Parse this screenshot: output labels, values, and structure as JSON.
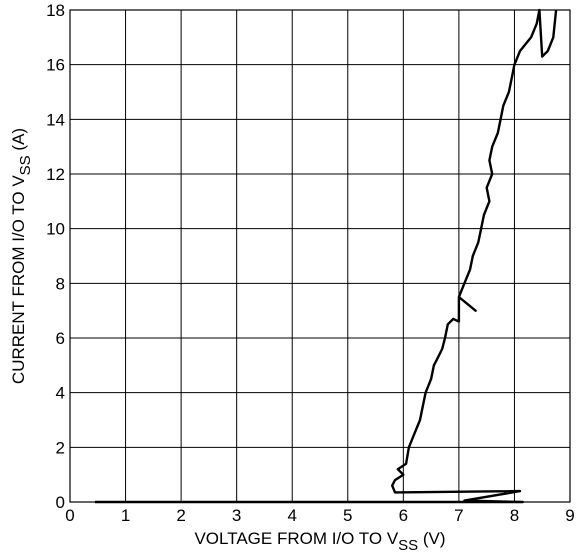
{
  "chart_data": {
    "type": "line",
    "xlabel": {
      "main": "VOLTAGE FROM I/O TO V",
      "sub": "SS",
      "tail": " (V)"
    },
    "ylabel": {
      "main": "CURRENT FROM  I/O TO V",
      "sub": "SS",
      "tail": " (A)"
    },
    "xlim": [
      0,
      9
    ],
    "ylim": [
      0,
      18
    ],
    "xticks": [
      0,
      1,
      2,
      3,
      4,
      5,
      6,
      7,
      8,
      9
    ],
    "yticks": [
      0,
      2,
      4,
      6,
      8,
      10,
      12,
      14,
      16,
      18
    ],
    "grid": true,
    "series": [
      {
        "x": [
          0.45,
          8.15,
          7.1,
          8.1,
          5.85,
          5.8,
          5.85,
          6.0,
          5.9,
          6.05,
          6.1,
          6.2,
          6.3,
          6.35,
          6.4,
          6.5,
          6.55,
          6.6,
          6.7,
          6.75,
          6.8,
          6.9,
          7.0,
          7.0,
          7.3,
          7.0,
          7.1,
          7.2,
          7.25,
          7.35,
          7.4,
          7.45,
          7.55,
          7.5,
          7.6,
          7.55,
          7.6,
          7.7,
          7.75,
          7.8,
          7.9,
          7.95,
          8.0,
          8.1,
          8.3,
          8.4,
          8.45,
          8.5,
          8.6,
          8.7,
          8.75
        ],
        "y": [
          0.0,
          0.0,
          0.05,
          0.4,
          0.35,
          0.6,
          0.8,
          1.0,
          1.2,
          1.4,
          2.0,
          2.5,
          3.0,
          3.5,
          4.0,
          4.5,
          5.0,
          5.2,
          5.6,
          6.0,
          6.5,
          6.7,
          6.6,
          7.5,
          7.0,
          7.5,
          8.0,
          8.5,
          9.0,
          9.5,
          10.0,
          10.5,
          11.0,
          11.5,
          12.0,
          12.5,
          13.0,
          13.5,
          14.0,
          14.5,
          15.0,
          15.5,
          16.0,
          16.5,
          17.0,
          17.5,
          18.0,
          16.3,
          16.5,
          17.0,
          18.0
        ]
      }
    ]
  }
}
